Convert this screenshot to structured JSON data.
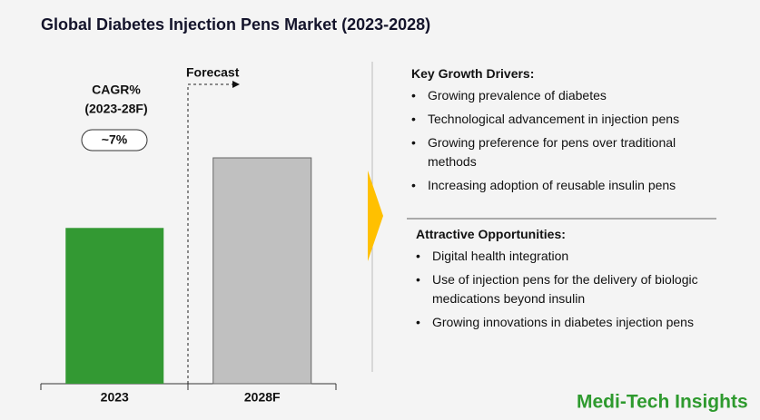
{
  "chart_data": {
    "type": "bar",
    "title": "Global Diabetes Injection Pens Market (2023-2028)",
    "categories": [
      "2023",
      "2028F"
    ],
    "values": [
      1.0,
      1.45
    ],
    "colors": [
      "#339933",
      "#c0c0c0"
    ],
    "forecast_label": "Forecast",
    "cagr_label": "CAGR%",
    "cagr_period": "(2023-28F)",
    "cagr_value": "~7%"
  },
  "drivers": {
    "title": "Key Growth Drivers:",
    "items": [
      "Growing prevalence of diabetes",
      "Technological advancement in injection pens",
      "Growing preference for pens over traditional methods",
      "Increasing adoption of reusable insulin pens"
    ]
  },
  "opportunities": {
    "title": "Attractive Opportunities:",
    "items": [
      "Digital health integration",
      "Use of injection pens for the delivery of biologic medications beyond insulin",
      "Growing innovations in diabetes injection pens"
    ]
  },
  "brand": "Medi-Tech Insights"
}
